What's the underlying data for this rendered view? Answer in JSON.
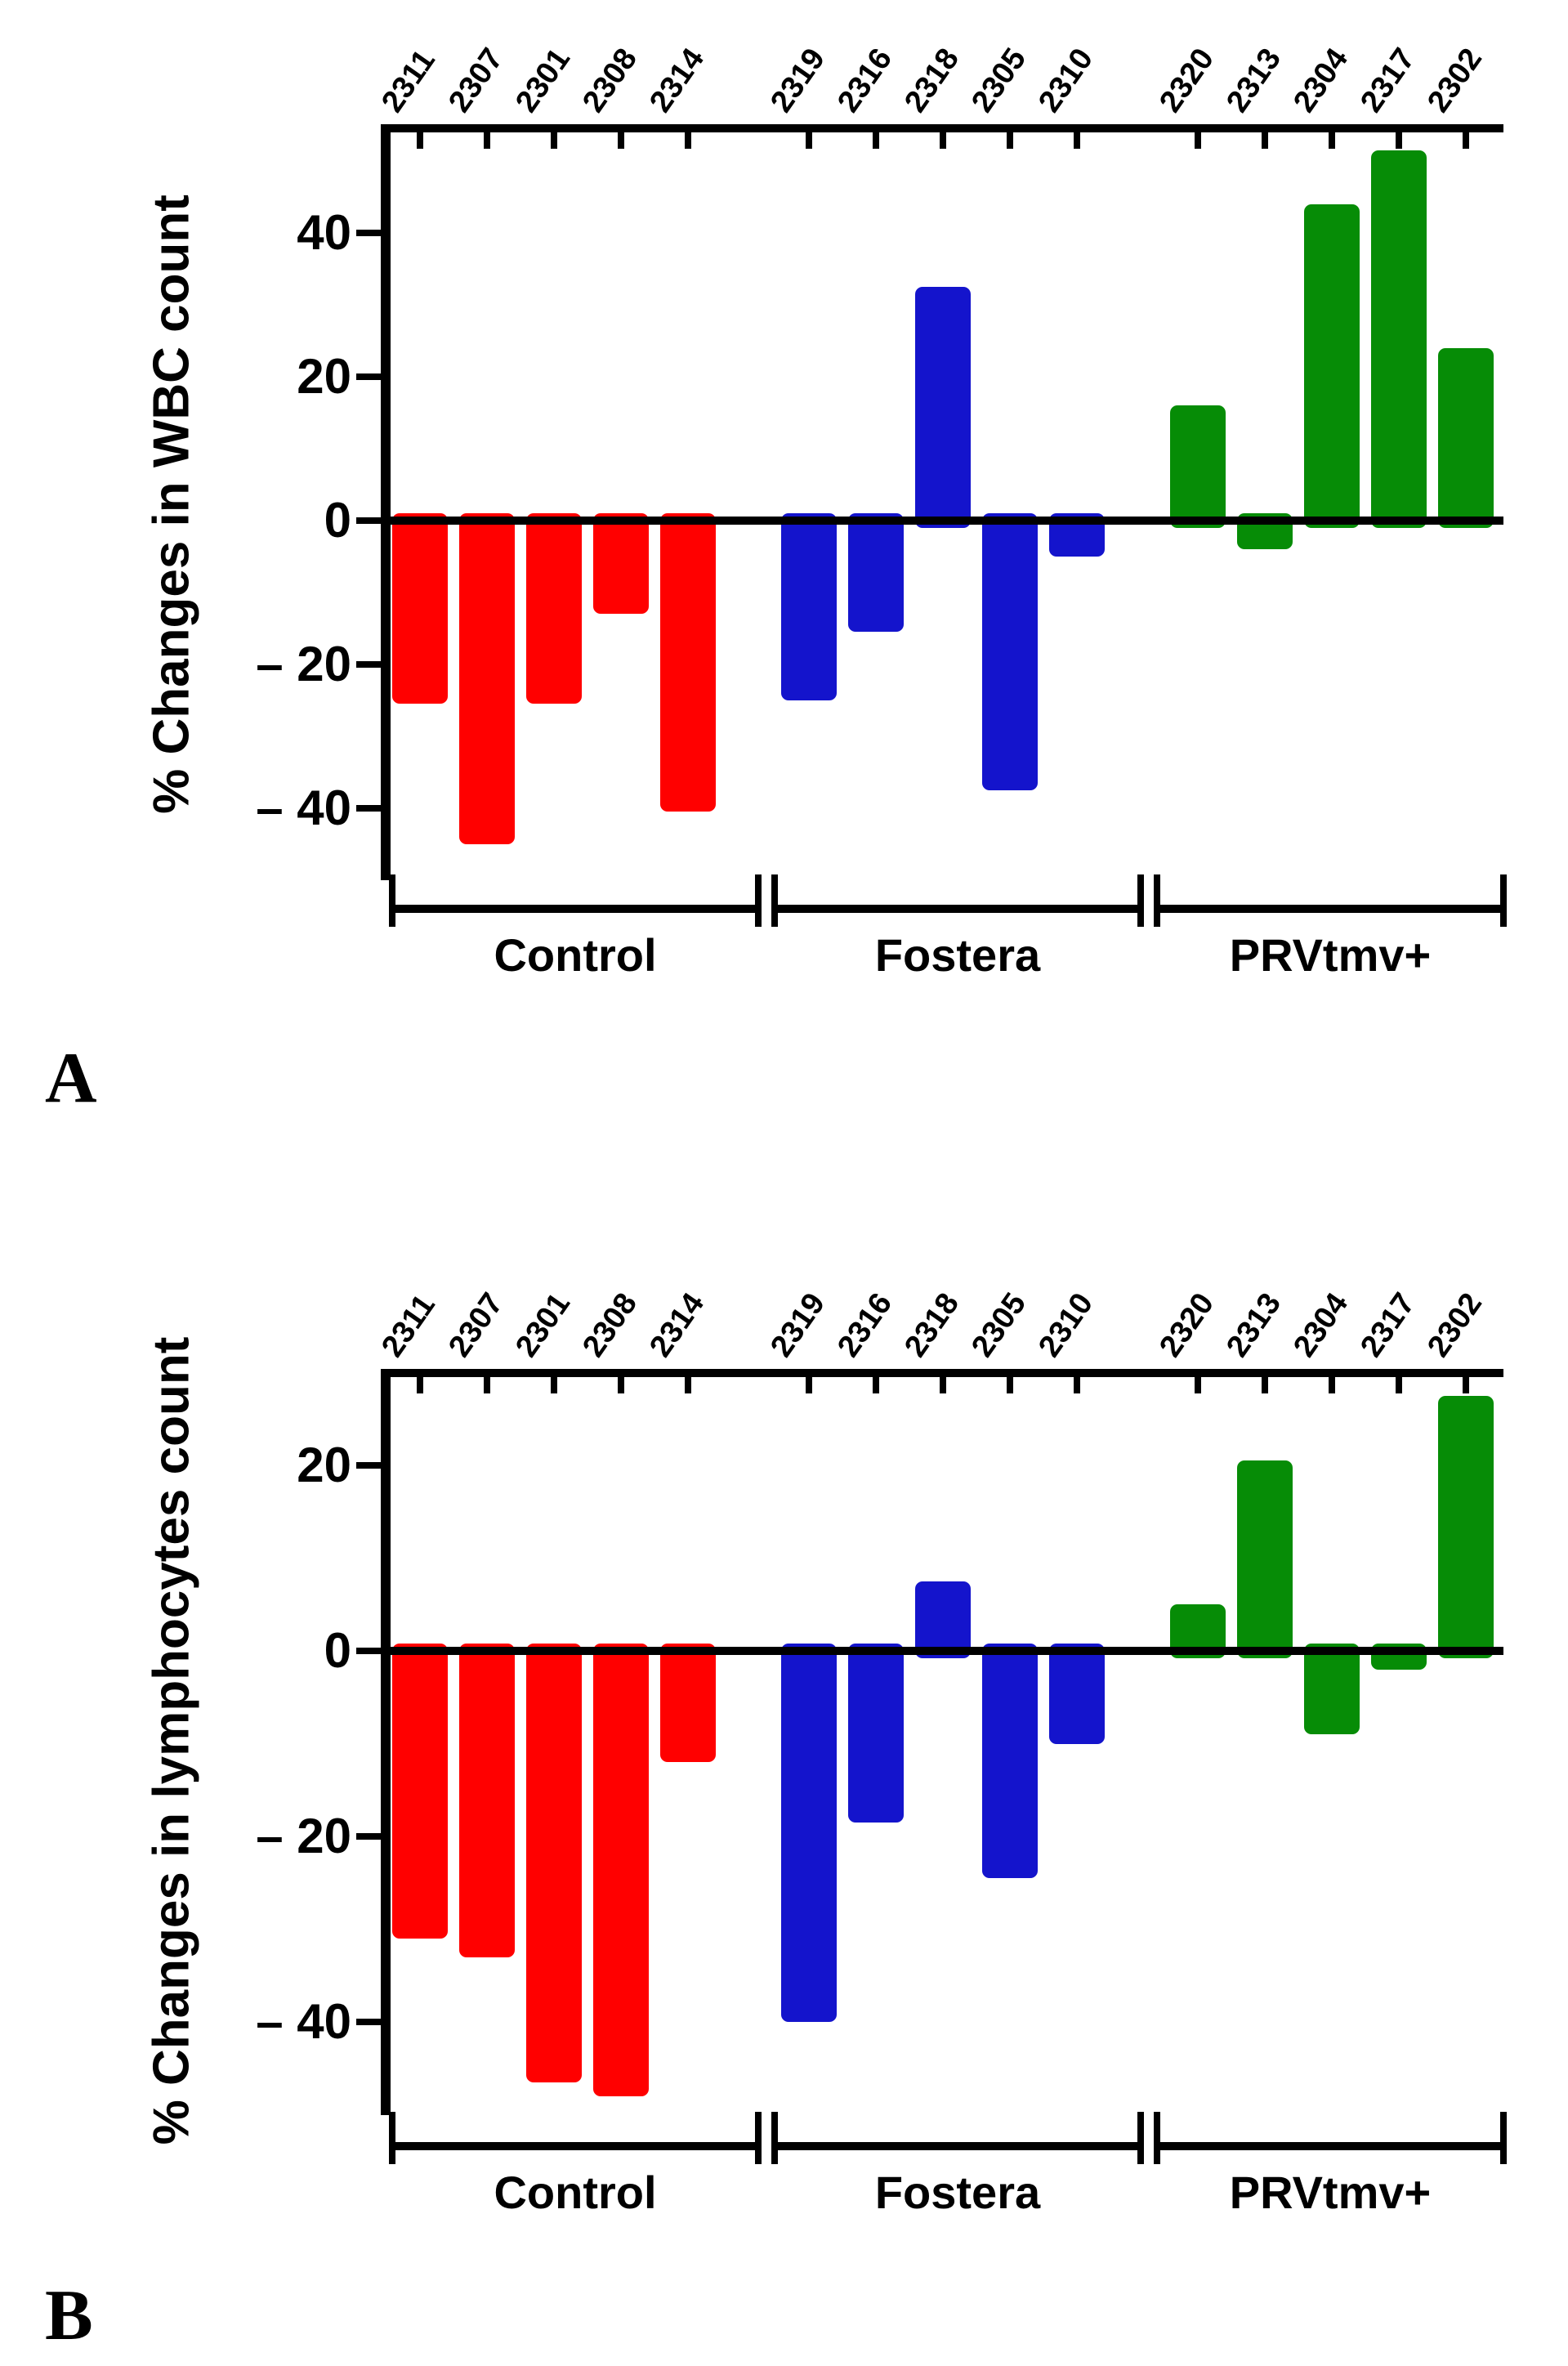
{
  "panel_letters": [
    "A",
    "B"
  ],
  "chart_data": [
    {
      "type": "bar",
      "panel": "A",
      "title": "",
      "ylabel": "% Changes in WBC count",
      "xlabel": "",
      "ylim": [
        -50,
        55
      ],
      "yticks": [
        40,
        20,
        0,
        -20,
        -40
      ],
      "ytick_labels": [
        "40",
        "20",
        "0",
        "– 20",
        "– 40"
      ],
      "grid": false,
      "legend_position": "none",
      "groups": [
        {
          "name": "Control",
          "color": "#ff0000",
          "ids": [
            "2311",
            "2307",
            "2301",
            "2308",
            "2314"
          ],
          "values": [
            -25.5,
            -45,
            -25.5,
            -13,
            -40.5
          ]
        },
        {
          "name": "Fostera",
          "color": "#1414cc",
          "ids": [
            "2319",
            "2316",
            "2318",
            "2305",
            "2310"
          ],
          "values": [
            -25,
            -15.5,
            32.5,
            -37.5,
            -5
          ]
        },
        {
          "name": "PRVtmv+",
          "color": "#068c06",
          "ids": [
            "2320",
            "2313",
            "2304",
            "2317",
            "2302"
          ],
          "values": [
            16,
            -4,
            44,
            51.5,
            24
          ]
        }
      ]
    },
    {
      "type": "bar",
      "panel": "B",
      "title": "",
      "ylabel": "% Changes in lymphocytes count",
      "xlabel": "",
      "ylim": [
        -50,
        30
      ],
      "yticks": [
        20,
        0,
        -20,
        -40
      ],
      "ytick_labels": [
        "20",
        "0",
        "– 20",
        "– 40"
      ],
      "grid": false,
      "legend_position": "none",
      "groups": [
        {
          "name": "Control",
          "color": "#ff0000",
          "ids": [
            "2311",
            "2307",
            "2301",
            "2308",
            "2314"
          ],
          "values": [
            -31,
            -33,
            -46.5,
            -48,
            -12
          ]
        },
        {
          "name": "Fostera",
          "color": "#1414cc",
          "ids": [
            "2319",
            "2316",
            "2318",
            "2305",
            "2310"
          ],
          "values": [
            -40,
            -18.5,
            7.5,
            -24.5,
            -10
          ]
        },
        {
          "name": "PRVtmv+",
          "color": "#068c06",
          "ids": [
            "2320",
            "2313",
            "2304",
            "2317",
            "2302"
          ],
          "values": [
            5,
            20.5,
            -9,
            -2,
            27.5
          ]
        }
      ]
    }
  ]
}
